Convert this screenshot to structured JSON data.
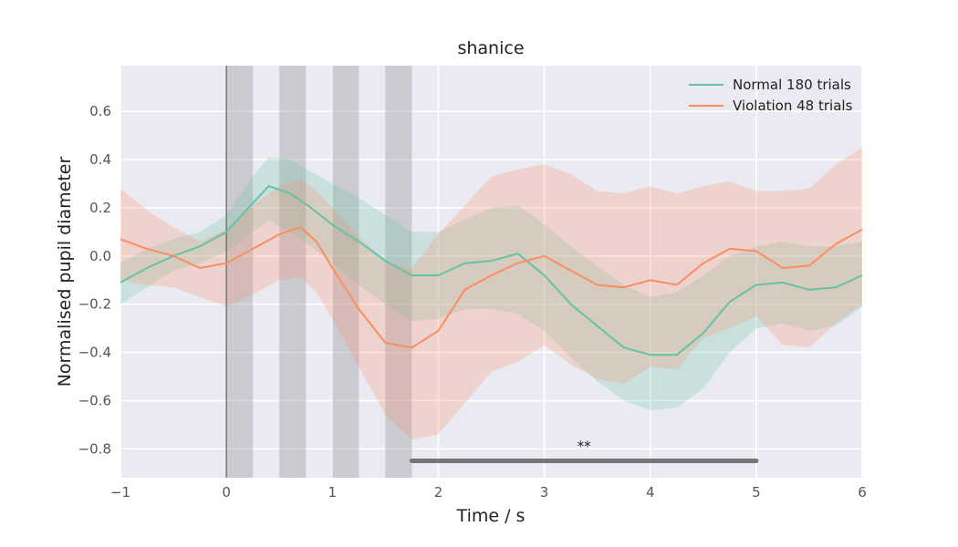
{
  "chart_data": {
    "type": "line",
    "title": "shanice",
    "xlabel": "Time / s",
    "ylabel": "Normalised pupil diameter",
    "xlim": [
      -1,
      6
    ],
    "ylim": [
      -0.92,
      0.79
    ],
    "xticks": [
      -1,
      0,
      1,
      2,
      3,
      4,
      5,
      6
    ],
    "xtick_labels": [
      "−1",
      "0",
      "1",
      "2",
      "3",
      "4",
      "5",
      "6"
    ],
    "yticks": [
      0.6,
      0.4,
      0.2,
      0.0,
      -0.2,
      -0.4,
      -0.6,
      -0.8
    ],
    "ytick_labels": [
      "0.6",
      "0.4",
      "0.2",
      "0.0",
      "−0.2",
      "−0.4",
      "−0.6",
      "−0.8"
    ],
    "grid": true,
    "legend_position": "top-right",
    "stimulus_onset": 0,
    "shaded_intervals": [
      [
        0,
        0.25
      ],
      [
        0.5,
        0.75
      ],
      [
        1.0,
        1.25
      ],
      [
        1.5,
        1.75
      ]
    ],
    "significance": {
      "x": [
        1.75,
        5.0
      ],
      "y": -0.85,
      "label": "**"
    },
    "series": [
      {
        "name": "Normal 180 trials",
        "color": "#66c2a5",
        "x": [
          -1,
          -0.75,
          -0.5,
          -0.25,
          0,
          0.25,
          0.4,
          0.6,
          0.8,
          1.0,
          1.25,
          1.5,
          1.75,
          2.0,
          2.25,
          2.5,
          2.75,
          3.0,
          3.25,
          3.5,
          3.75,
          4.0,
          4.25,
          4.5,
          4.75,
          5.0,
          5.25,
          5.5,
          5.75,
          6.0
        ],
        "mean": [
          -0.11,
          -0.05,
          0.0,
          0.04,
          0.1,
          0.22,
          0.29,
          0.26,
          0.2,
          0.13,
          0.06,
          -0.02,
          -0.08,
          -0.08,
          -0.03,
          -0.02,
          0.01,
          -0.08,
          -0.2,
          -0.29,
          -0.38,
          -0.41,
          -0.41,
          -0.32,
          -0.19,
          -0.12,
          -0.11,
          -0.14,
          -0.13,
          -0.08
        ],
        "upper": [
          -0.03,
          0.03,
          0.07,
          0.1,
          0.17,
          0.33,
          0.41,
          0.4,
          0.35,
          0.3,
          0.24,
          0.17,
          0.1,
          0.1,
          0.15,
          0.2,
          0.21,
          0.13,
          0.04,
          -0.04,
          -0.12,
          -0.17,
          -0.15,
          -0.08,
          0.0,
          0.04,
          0.06,
          0.04,
          0.04,
          0.06
        ],
        "lower": [
          -0.2,
          -0.13,
          -0.06,
          -0.03,
          0.02,
          0.1,
          0.15,
          0.1,
          0.04,
          -0.03,
          -0.12,
          -0.2,
          -0.27,
          -0.26,
          -0.22,
          -0.22,
          -0.24,
          -0.31,
          -0.42,
          -0.52,
          -0.6,
          -0.64,
          -0.63,
          -0.55,
          -0.4,
          -0.3,
          -0.28,
          -0.31,
          -0.29,
          -0.21
        ]
      },
      {
        "name": "Violation 48 trials",
        "color": "#fc8d62",
        "x": [
          -1,
          -0.75,
          -0.5,
          -0.25,
          0,
          0.25,
          0.5,
          0.7,
          0.85,
          1.0,
          1.25,
          1.5,
          1.75,
          2.0,
          2.25,
          2.5,
          2.75,
          3.0,
          3.25,
          3.5,
          3.75,
          4.0,
          4.25,
          4.5,
          4.75,
          5.0,
          5.25,
          5.5,
          5.75,
          6.0
        ],
        "mean": [
          0.07,
          0.03,
          0.0,
          -0.05,
          -0.03,
          0.03,
          0.09,
          0.12,
          0.06,
          -0.05,
          -0.22,
          -0.36,
          -0.38,
          -0.31,
          -0.14,
          -0.08,
          -0.03,
          0.0,
          -0.06,
          -0.12,
          -0.13,
          -0.1,
          -0.12,
          -0.03,
          0.03,
          0.02,
          -0.05,
          -0.04,
          0.05,
          0.11
        ],
        "upper": [
          0.28,
          0.19,
          0.12,
          0.06,
          0.11,
          0.21,
          0.29,
          0.32,
          0.27,
          0.2,
          0.08,
          -0.02,
          -0.05,
          0.09,
          0.21,
          0.33,
          0.36,
          0.38,
          0.34,
          0.27,
          0.26,
          0.29,
          0.26,
          0.29,
          0.31,
          0.27,
          0.27,
          0.28,
          0.38,
          0.45
        ],
        "lower": [
          -0.1,
          -0.12,
          -0.13,
          -0.17,
          -0.21,
          -0.16,
          -0.1,
          -0.09,
          -0.15,
          -0.26,
          -0.46,
          -0.66,
          -0.76,
          -0.74,
          -0.61,
          -0.48,
          -0.44,
          -0.37,
          -0.45,
          -0.51,
          -0.53,
          -0.46,
          -0.47,
          -0.34,
          -0.3,
          -0.25,
          -0.37,
          -0.38,
          -0.28,
          -0.2
        ]
      }
    ]
  }
}
